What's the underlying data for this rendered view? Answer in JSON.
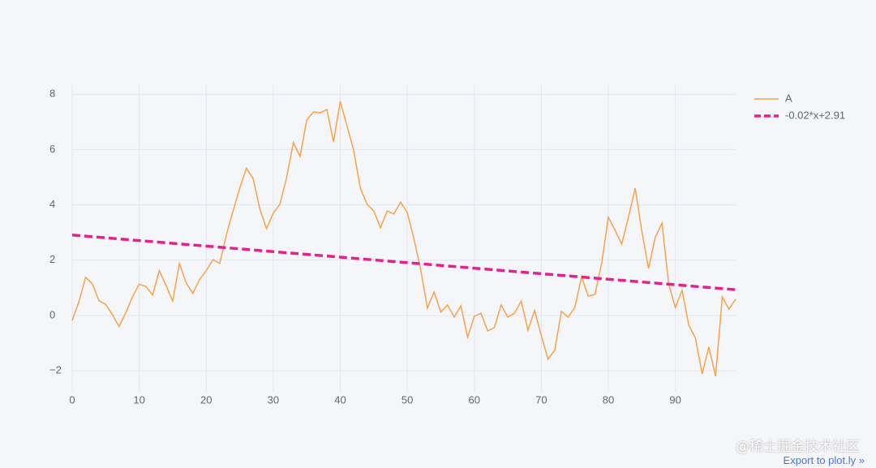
{
  "chart_data": {
    "type": "line",
    "xlim": [
      0,
      99
    ],
    "ylim": [
      -2.73,
      8.33
    ],
    "xticks": [
      0,
      10,
      20,
      30,
      40,
      50,
      60,
      70,
      80,
      90
    ],
    "yticks": [
      {
        "value": -2,
        "label": "−2"
      },
      0,
      2,
      4,
      6,
      8
    ],
    "grid": true,
    "legend": "top-right",
    "series": [
      {
        "name": "A",
        "color": "#f7a14a",
        "dash": false,
        "x": [
          0,
          1,
          2,
          3,
          4,
          5,
          6,
          7,
          8,
          9,
          10,
          11,
          12,
          13,
          14,
          15,
          16,
          17,
          18,
          19,
          20,
          21,
          22,
          23,
          24,
          25,
          26,
          27,
          28,
          29,
          30,
          31,
          32,
          33,
          34,
          35,
          36,
          37,
          38,
          39,
          40,
          41,
          42,
          43,
          44,
          45,
          46,
          47,
          48,
          49,
          50,
          51,
          52,
          53,
          54,
          55,
          56,
          57,
          58,
          59,
          60,
          61,
          62,
          63,
          64,
          65,
          66,
          67,
          68,
          69,
          70,
          71,
          72,
          73,
          74,
          75,
          76,
          77,
          78,
          79,
          80,
          81,
          82,
          83,
          84,
          85,
          86,
          87,
          88,
          89,
          90,
          91,
          92,
          93,
          94,
          95,
          96,
          97,
          98,
          99
        ],
        "values": [
          -0.18,
          0.5,
          1.38,
          1.15,
          0.53,
          0.4,
          0.03,
          -0.4,
          0.1,
          0.68,
          1.13,
          1.05,
          0.74,
          1.62,
          1.08,
          0.52,
          1.88,
          1.18,
          0.8,
          1.3,
          1.62,
          2.02,
          1.88,
          2.9,
          3.78,
          4.6,
          5.33,
          4.95,
          3.84,
          3.14,
          3.7,
          4.02,
          5.0,
          6.25,
          5.75,
          7.07,
          7.36,
          7.33,
          7.45,
          6.28,
          7.74,
          6.86,
          5.98,
          4.6,
          4.02,
          3.78,
          3.17,
          3.78,
          3.67,
          4.1,
          3.72,
          2.76,
          1.65,
          0.27,
          0.85,
          0.12,
          0.38,
          -0.06,
          0.35,
          -0.79,
          -0.03,
          0.08,
          -0.56,
          -0.44,
          0.38,
          -0.06,
          0.08,
          0.52,
          -0.53,
          0.18,
          -0.73,
          -1.58,
          -1.26,
          0.15,
          -0.06,
          0.29,
          1.4,
          0.7,
          0.76,
          1.88,
          3.55,
          3.08,
          2.58,
          3.55,
          4.6,
          3.05,
          1.7,
          2.82,
          3.34,
          1.14,
          0.29,
          0.91,
          -0.35,
          -0.82,
          -2.11,
          -1.14,
          -2.2,
          0.67,
          0.23,
          0.59
        ]
      },
      {
        "name": "-0.02*x+2.91",
        "color": "#e6208c",
        "dash": true,
        "x": [
          0,
          99
        ],
        "values": [
          2.91,
          0.93
        ]
      }
    ]
  },
  "watermark": "@稀土掘金技术社区",
  "export_link": "Export to plot.ly »"
}
